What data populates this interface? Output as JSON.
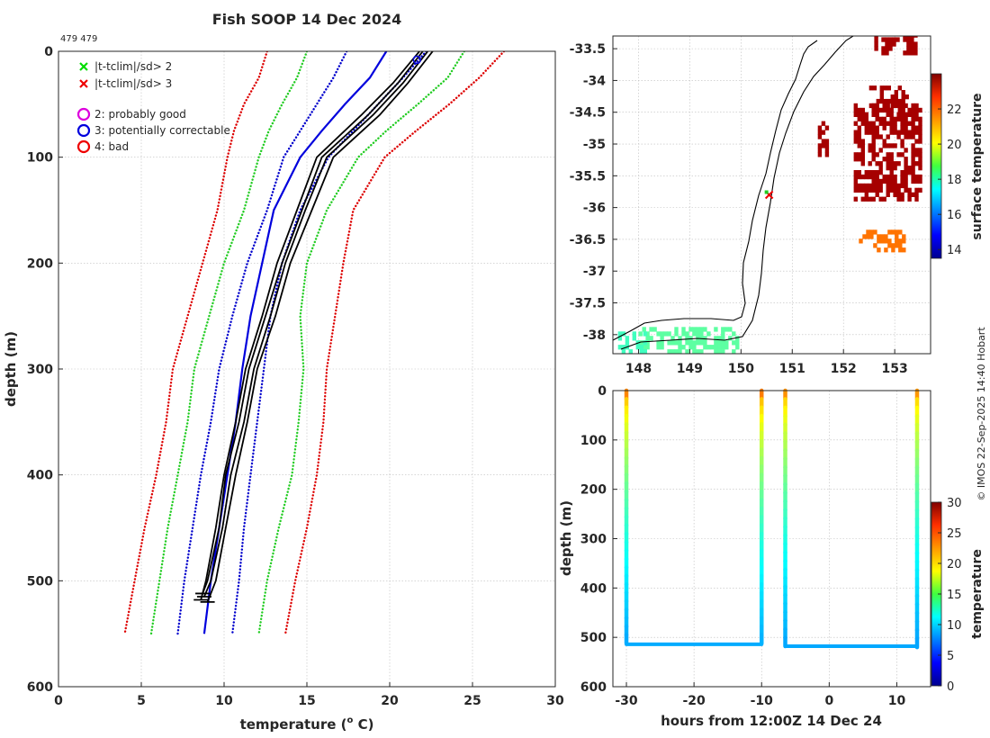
{
  "title": "Fish SOOP 14 Dec 2024",
  "subtitle": "479 479",
  "credit": "© IMOS 22-Sep-2025 14:40 Hobart",
  "legend": [
    {
      "symbol": "x",
      "color": "#00dd00",
      "label": "|t-tclim|/sd> 2"
    },
    {
      "symbol": "x",
      "color": "#ee0000",
      "label": "|t-tclim|/sd> 3"
    },
    {
      "symbol": "o",
      "color": "#dd00dd",
      "label": "2: probably good"
    },
    {
      "symbol": "o",
      "color": "#0000dd",
      "label": "3: potentially correctable"
    },
    {
      "symbol": "o",
      "color": "#ee0000",
      "label": "4: bad"
    }
  ],
  "chart_data": [
    {
      "type": "line",
      "name": "profile",
      "xlabel": "temperature (",
      "xlabel_sup": "o",
      "xlabel_suffix": " C)",
      "ylabel": "depth (m)",
      "xlim": [
        0,
        30
      ],
      "ylim": [
        0,
        600
      ],
      "y_reversed": true,
      "xticks": [
        0,
        5,
        10,
        15,
        20,
        25,
        30
      ],
      "yticks": [
        0,
        100,
        200,
        300,
        400,
        500,
        600
      ],
      "grid": true,
      "depths": [
        0,
        25,
        50,
        75,
        100,
        150,
        200,
        250,
        300,
        350,
        400,
        450,
        500,
        550
      ],
      "climatology": [
        {
          "name": "clim -3sd",
          "style": "dotted",
          "color": "#dd0000",
          "values": [
            12.6,
            12.1,
            11.2,
            10.6,
            10.2,
            9.6,
            8.7,
            7.8,
            6.9,
            6.5,
            5.9,
            5.2,
            4.6,
            4.0
          ]
        },
        {
          "name": "clim -2sd",
          "style": "dotted",
          "color": "#22cc22",
          "values": [
            15.0,
            14.4,
            13.5,
            12.7,
            12.1,
            11.2,
            10.0,
            9.1,
            8.2,
            7.8,
            7.2,
            6.6,
            6.1,
            5.6
          ]
        },
        {
          "name": "clim -1sd",
          "style": "dotted",
          "color": "#0000cc",
          "values": [
            17.4,
            16.6,
            15.6,
            14.6,
            13.6,
            12.6,
            11.4,
            10.5,
            9.7,
            9.2,
            8.6,
            8.1,
            7.6,
            7.2
          ]
        },
        {
          "name": "climatology mean",
          "style": "solid",
          "color": "#0000dd",
          "values": [
            19.8,
            18.8,
            17.3,
            15.9,
            14.6,
            13.0,
            12.3,
            11.6,
            11.1,
            10.7,
            10.2,
            9.7,
            9.2,
            8.8
          ]
        },
        {
          "name": "clim +1sd",
          "style": "dotted",
          "color": "#0000cc",
          "values": [
            22.2,
            20.8,
            19.3,
            17.8,
            16.3,
            14.6,
            13.5,
            12.8,
            12.4,
            12.0,
            11.6,
            11.2,
            10.9,
            10.5
          ]
        },
        {
          "name": "clim +2sd",
          "style": "dotted",
          "color": "#22cc22",
          "values": [
            24.5,
            23.5,
            21.7,
            19.8,
            18.1,
            16.2,
            15.0,
            14.6,
            14.8,
            14.5,
            14.1,
            13.3,
            12.6,
            12.1
          ]
        },
        {
          "name": "clim +3sd",
          "style": "dotted",
          "color": "#dd0000",
          "values": [
            26.9,
            25.4,
            23.6,
            21.6,
            19.7,
            17.8,
            17.2,
            16.7,
            16.2,
            16.0,
            15.6,
            15.0,
            14.3,
            13.7
          ]
        }
      ],
      "profiles": [
        {
          "name": "profile 1",
          "depths": [
            0,
            30,
            60,
            100,
            150,
            200,
            250,
            300,
            350,
            400,
            450,
            500,
            515
          ],
          "values": [
            22.3,
            20.8,
            19.0,
            16.2,
            14.9,
            13.7,
            12.8,
            11.8,
            11.2,
            10.4,
            9.9,
            9.2,
            8.8
          ]
        },
        {
          "name": "profile 2",
          "depths": [
            0,
            30,
            60,
            100,
            150,
            200,
            250,
            300,
            350,
            400,
            450,
            500,
            520
          ],
          "values": [
            22.6,
            21.1,
            19.4,
            16.6,
            15.3,
            14.0,
            13.1,
            12.0,
            11.4,
            10.7,
            10.1,
            9.5,
            9.0
          ]
        },
        {
          "name": "profile 3",
          "depths": [
            0,
            30,
            60,
            100,
            150,
            200,
            250,
            300,
            350,
            400,
            450,
            500,
            512
          ],
          "values": [
            22.0,
            20.5,
            18.7,
            15.9,
            14.7,
            13.5,
            12.5,
            11.5,
            10.9,
            10.1,
            9.7,
            9.0,
            8.7
          ]
        },
        {
          "name": "profile 4",
          "depths": [
            0,
            30,
            60,
            100,
            150,
            200,
            250,
            300,
            350,
            400,
            450,
            500,
            518
          ],
          "values": [
            21.8,
            20.2,
            18.3,
            15.6,
            14.4,
            13.2,
            12.3,
            11.3,
            10.7,
            10.0,
            9.5,
            8.9,
            8.6
          ]
        }
      ]
    },
    {
      "type": "heatmap",
      "name": "map",
      "colorbar_label": "surface temperature",
      "xlim": [
        147.5,
        153.7
      ],
      "ylim": [
        -38.3,
        -33.3
      ],
      "xticks": [
        148,
        149,
        150,
        151,
        152,
        153
      ],
      "yticks": [
        -33.5,
        -34,
        -34.5,
        -35,
        -35.5,
        -36,
        -36.5,
        -37,
        -37.5,
        -38
      ],
      "ytick_labels": [
        "-33.5",
        "-34",
        "-34.5",
        "-35",
        "-35.5",
        "-36",
        "-36.5",
        "-37",
        "-37.5",
        "-38"
      ],
      "colorbar_range": [
        13.5,
        24
      ],
      "colorbar_ticks": [
        14,
        16,
        18,
        20,
        22
      ],
      "marker": {
        "lon": 150.55,
        "lat": -35.8
      },
      "patches": [
        {
          "lon": [
            152.2,
            153.5
          ],
          "lat": [
            -35.9,
            -34.4
          ],
          "t": 23.6
        },
        {
          "lon": [
            152.5,
            153.2
          ],
          "lat": [
            -34.5,
            -34.1
          ],
          "t": 23.6
        },
        {
          "lon": [
            152.6,
            153.4
          ],
          "lat": [
            -33.6,
            -33.3
          ],
          "t": 23.6
        },
        {
          "lon": [
            151.5,
            151.7
          ],
          "lat": [
            -35.2,
            -34.7
          ],
          "t": 23.6
        },
        {
          "lon": [
            152.3,
            153.2
          ],
          "lat": [
            -36.7,
            -36.4
          ],
          "t": 21.5
        },
        {
          "lon": [
            148.0,
            149.9
          ],
          "lat": [
            -38.3,
            -37.9
          ],
          "t": 18.4
        },
        {
          "lon": [
            147.6,
            148.1
          ],
          "lat": [
            -38.3,
            -38.0
          ],
          "t": 18.1
        }
      ]
    },
    {
      "type": "scatter",
      "name": "section",
      "xlabel": "hours from 12:00Z 14 Dec 24",
      "ylabel": "depth (m)",
      "colorbar_label": "temperature",
      "xlim": [
        -32,
        15
      ],
      "ylim": [
        0,
        600
      ],
      "y_reversed": true,
      "xticks": [
        -30,
        -20,
        -10,
        0,
        10
      ],
      "yticks": [
        0,
        100,
        200,
        300,
        400,
        500,
        600
      ],
      "colorbar_range": [
        0,
        30
      ],
      "colorbar_ticks": [
        0,
        5,
        10,
        15,
        20,
        25,
        30
      ],
      "casts": [
        {
          "time": -30.0,
          "max_depth": 512,
          "surface_t": 22.3,
          "deep_t": 8.8
        },
        {
          "time": -10.0,
          "max_depth": 512,
          "surface_t": 22.6,
          "deep_t": 9.0
        },
        {
          "time": -6.5,
          "max_depth": 518,
          "surface_t": 22.0,
          "deep_t": 8.7
        },
        {
          "time": 13.0,
          "max_depth": 520,
          "surface_t": 21.8,
          "deep_t": 8.6
        }
      ],
      "transects": [
        {
          "t0": -30.0,
          "t1": -10.0,
          "depth": 514,
          "t": 8.8
        },
        {
          "t0": -6.5,
          "t1": 13.0,
          "depth": 518,
          "t": 8.7
        }
      ]
    }
  ]
}
